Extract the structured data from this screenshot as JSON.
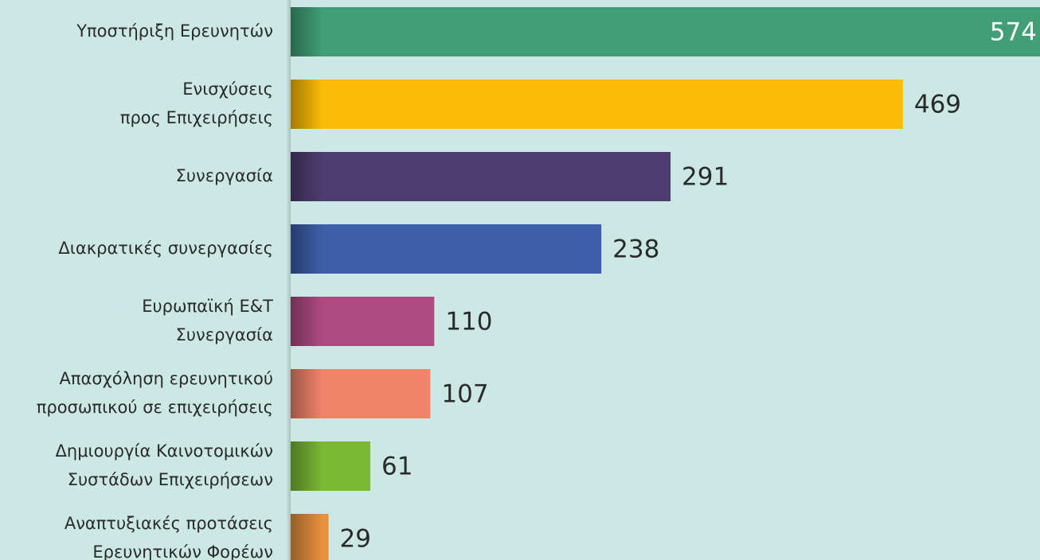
{
  "chart_data": {
    "type": "bar",
    "orientation": "horizontal",
    "categories": [
      [
        "Υποστήριξη Ερευνητών"
      ],
      [
        "Ενισχύσεις",
        "προς Επιχειρήσεις"
      ],
      [
        "Συνεργασία"
      ],
      [
        "Διακρατικές συνεργασίες"
      ],
      [
        "Ευρωπαϊκή Ε&Τ",
        "Συνεργασία"
      ],
      [
        "Απασχόληση ερευνητικού",
        "προσωπικού σε επιχειρήσεις"
      ],
      [
        "Δημιουργία Καινοτομικών",
        "Συστάδων Επιχειρήσεων"
      ],
      [
        "Αναπτυξιακές προτάσεις",
        "Ερευνητικών Φορέων"
      ]
    ],
    "values": [
      574,
      469,
      291,
      238,
      110,
      107,
      61,
      29
    ],
    "colors": [
      "#419e76",
      "#fbbc05",
      "#4d3d70",
      "#3d5ea8",
      "#ad4a82",
      "#f2836b",
      "#7ab834",
      "#e8913e"
    ]
  }
}
